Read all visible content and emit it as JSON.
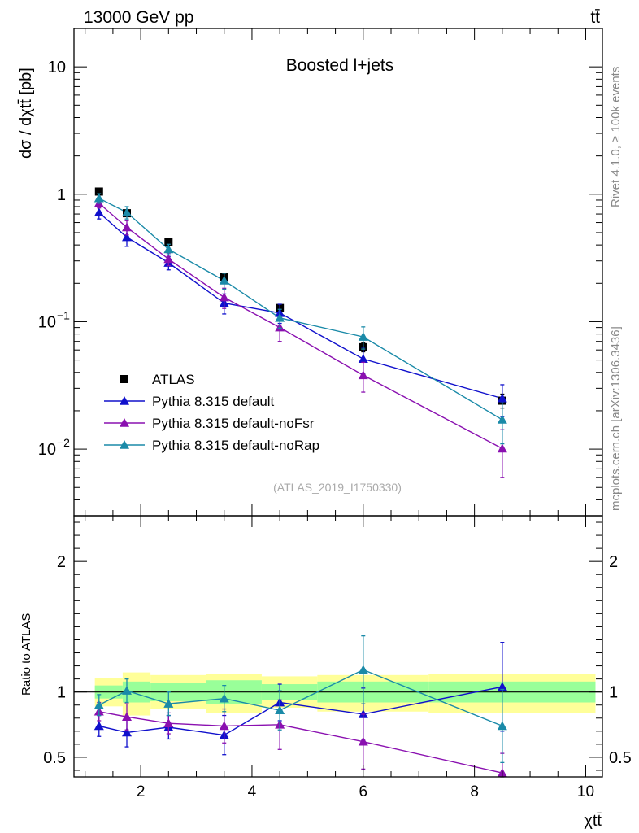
{
  "header": {
    "energy_label": "13000 GeV pp",
    "process_label": "tt̄",
    "plot_title": "Boosted l+jets",
    "analysis_tag": "(ATLAS_2019_I1750330)",
    "side_label_rivet": "Rivet 4.1.0, ≥ 100k events",
    "side_label_mcplots": "mcplots.cern.ch [arXiv:1306.3436]"
  },
  "colors": {
    "atlas": "#000000",
    "default": "#1010cc",
    "noFsr": "#8a10b0",
    "noRap": "#1a8aa8",
    "band_inner": "#99ff99",
    "band_outer": "#ffff99"
  },
  "chart_data": [
    {
      "id": "main",
      "type": "scatter",
      "y_scale": "log",
      "xlim": [
        0.8,
        10.3
      ],
      "ylim": [
        0.003,
        20
      ],
      "ylabel": "dσ / dχtt̄ [pb]",
      "xlabel": "",
      "y_tick_labels": [
        {
          "value": 0.01,
          "base": "10",
          "exp": "−2"
        },
        {
          "value": 0.1,
          "base": "10",
          "exp": "−1"
        },
        {
          "value": 1,
          "base": "1",
          "exp": ""
        },
        {
          "value": 10,
          "base": "10",
          "exp": ""
        }
      ],
      "x_bins": [
        [
          1,
          1.5
        ],
        [
          1.5,
          2
        ],
        [
          2,
          3
        ],
        [
          3,
          4
        ],
        [
          4,
          5
        ],
        [
          5,
          7
        ],
        [
          7,
          10
        ]
      ],
      "x_centers": [
        1.25,
        1.75,
        2.5,
        3.5,
        4.5,
        6.0,
        8.5
      ],
      "series": [
        {
          "name": "ATLAS",
          "key": "atlas",
          "marker": "square",
          "values": [
            1.05,
            0.71,
            0.42,
            0.225,
            0.128,
            0.063,
            0.024
          ],
          "err": [
            0.05,
            0.04,
            0.02,
            0.012,
            0.008,
            0.005,
            0.003
          ]
        },
        {
          "name": "Pythia 8.315 default",
          "key": "default",
          "marker": "triangle",
          "values": [
            0.72,
            0.46,
            0.29,
            0.14,
            0.117,
            0.051,
            0.025
          ],
          "err": [
            0.08,
            0.07,
            0.035,
            0.025,
            0.02,
            0.012,
            0.007
          ]
        },
        {
          "name": "Pythia 8.315 default-noFsr",
          "key": "noFsr",
          "marker": "triangle",
          "values": [
            0.85,
            0.55,
            0.31,
            0.155,
            0.09,
            0.038,
            0.0101
          ],
          "err": [
            0.07,
            0.07,
            0.035,
            0.028,
            0.02,
            0.01,
            0.0041
          ]
        },
        {
          "name": "Pythia 8.315 default-noRap",
          "key": "noRap",
          "marker": "triangle",
          "values": [
            0.93,
            0.72,
            0.37,
            0.21,
            0.107,
            0.076,
            0.017
          ],
          "err": [
            0.08,
            0.08,
            0.035,
            0.03,
            0.018,
            0.015,
            0.006
          ]
        }
      ]
    },
    {
      "id": "ratio",
      "type": "scatter",
      "y_scale": "linear",
      "xlim": [
        0.8,
        10.3
      ],
      "ylim": [
        0.35,
        2.35
      ],
      "ylabel": "Ratio to ATLAS",
      "xlabel": "χtt̄",
      "x_ticks": [
        2,
        4,
        6,
        8,
        10
      ],
      "y_ticks": [
        0.5,
        1,
        2
      ],
      "x_bins": [
        [
          1,
          1.5
        ],
        [
          1.5,
          2
        ],
        [
          2,
          3
        ],
        [
          3,
          4
        ],
        [
          4,
          5
        ],
        [
          5,
          7
        ],
        [
          7,
          10
        ]
      ],
      "x_centers": [
        1.25,
        1.75,
        2.5,
        3.5,
        4.5,
        6.0,
        8.5
      ],
      "band_inner": [
        [
          0.95,
          1.05
        ],
        [
          0.92,
          1.08
        ],
        [
          0.93,
          1.07
        ],
        [
          0.91,
          1.09
        ],
        [
          0.94,
          1.06
        ],
        [
          0.92,
          1.08
        ],
        [
          0.92,
          1.08
        ]
      ],
      "band_outer": [
        [
          0.89,
          1.11
        ],
        [
          0.82,
          1.15
        ],
        [
          0.87,
          1.13
        ],
        [
          0.84,
          1.14
        ],
        [
          0.88,
          1.12
        ],
        [
          0.85,
          1.13
        ],
        [
          0.84,
          1.14
        ]
      ],
      "series": [
        {
          "name": "Pythia 8.315 default",
          "key": "default",
          "values": [
            0.74,
            0.69,
            0.73,
            0.67,
            0.92,
            0.83,
            1.04
          ],
          "err": [
            0.08,
            0.11,
            0.09,
            0.15,
            0.14,
            0.2,
            0.34
          ]
        },
        {
          "name": "Pythia 8.315 default-noFsr",
          "key": "noFsr",
          "values": [
            0.85,
            0.81,
            0.76,
            0.74,
            0.75,
            0.62,
            0.38
          ],
          "err": [
            0.07,
            0.1,
            0.08,
            0.13,
            0.19,
            0.21,
            0.15
          ]
        },
        {
          "name": "Pythia 8.315 default-noRap",
          "key": "noRap",
          "values": [
            0.9,
            1.01,
            0.91,
            0.95,
            0.86,
            1.17,
            0.74
          ],
          "err": [
            0.08,
            0.09,
            0.09,
            0.1,
            0.15,
            0.26,
            0.28
          ]
        }
      ]
    }
  ]
}
